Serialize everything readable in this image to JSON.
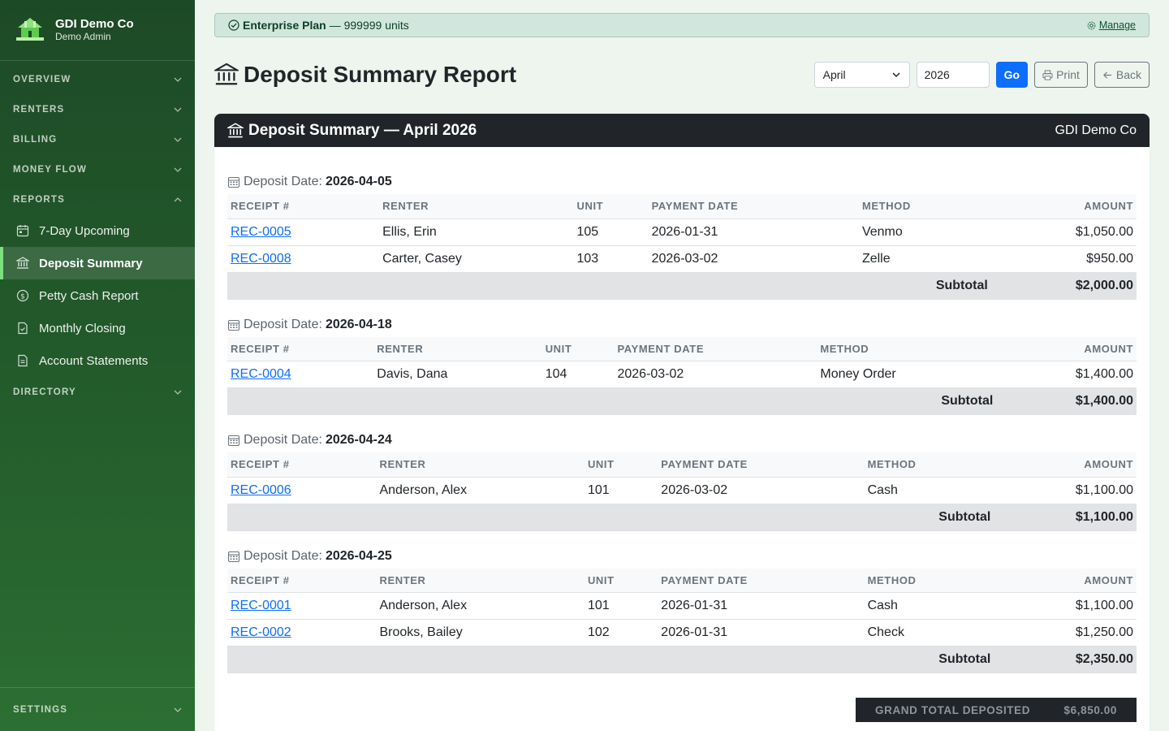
{
  "brand": {
    "name": "GDI Demo Co",
    "user": "Demo Admin"
  },
  "nav": {
    "overview": "OVERVIEW",
    "renters": "RENTERS",
    "billing": "BILLING",
    "money_flow": "MONEY FLOW",
    "reports": "REPORTS",
    "items": [
      "7-Day Upcoming",
      "Deposit Summary",
      "Petty Cash Report",
      "Monthly Closing",
      "Account Statements"
    ],
    "directory": "DIRECTORY",
    "settings": "SETTINGS"
  },
  "plan": {
    "name": "Enterprise Plan",
    "detail": " — 999999 units",
    "manage": "Manage"
  },
  "page": {
    "title": "Deposit Summary Report",
    "month": "April",
    "year": "2026",
    "go": "Go",
    "print": "Print",
    "back": "Back"
  },
  "card": {
    "title": "Deposit Summary — April 2026",
    "company": "GDI Demo Co"
  },
  "labels": {
    "deposit_date": "Deposit Date:",
    "subtotal": "Subtotal",
    "grand_total": "GRAND TOTAL DEPOSITED"
  },
  "columns": [
    "RECEIPT #",
    "RENTER",
    "UNIT",
    "PAYMENT DATE",
    "METHOD",
    "AMOUNT"
  ],
  "groups": [
    {
      "date": "2026-04-05",
      "rows": [
        [
          "REC-0005",
          "Ellis, Erin",
          "105",
          "2026-01-31",
          "Venmo",
          "$1,050.00"
        ],
        [
          "REC-0008",
          "Carter, Casey",
          "103",
          "2026-03-02",
          "Zelle",
          "$950.00"
        ]
      ],
      "subtotal": "$2,000.00"
    },
    {
      "date": "2026-04-18",
      "rows": [
        [
          "REC-0004",
          "Davis, Dana",
          "104",
          "2026-03-02",
          "Money Order",
          "$1,400.00"
        ]
      ],
      "subtotal": "$1,400.00"
    },
    {
      "date": "2026-04-24",
      "rows": [
        [
          "REC-0006",
          "Anderson, Alex",
          "101",
          "2026-03-02",
          "Cash",
          "$1,100.00"
        ]
      ],
      "subtotal": "$1,100.00"
    },
    {
      "date": "2026-04-25",
      "rows": [
        [
          "REC-0001",
          "Anderson, Alex",
          "101",
          "2026-01-31",
          "Cash",
          "$1,100.00"
        ],
        [
          "REC-0002",
          "Brooks, Bailey",
          "102",
          "2026-01-31",
          "Check",
          "$1,250.00"
        ]
      ],
      "subtotal": "$2,350.00"
    }
  ],
  "grand_total": "$6,850.00"
}
